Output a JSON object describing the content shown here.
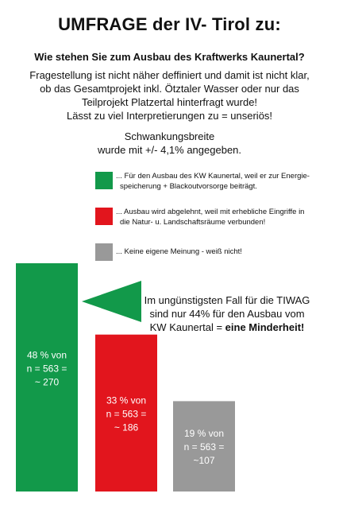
{
  "title": "UMFRAGE der IV- Tirol zu:",
  "subtitle": "Wie stehen Sie zum Ausbau des Kraftwerks Kaunertal?",
  "intro_lines": [
    "Fragestellung ist nicht näher deffiniert und damit ist nicht klar,",
    "ob das Gesamtprojekt inkl. Ötztaler Wasser oder nur das",
    "Teilprojekt Platzertal hinterfragt wurde!",
    "Lässt zu viel Interpretierungen zu = unseriös!"
  ],
  "margin_note_lines": [
    "Schwankungsbreite",
    "wurde mit +/- 4,1% angegeben."
  ],
  "legend": [
    {
      "color": "#12994a",
      "lines": [
        "... Für den Ausbau des KW Kaunertal, weil er zur Energie-",
        "speicherung + Blackoutvorsorge beiträgt."
      ]
    },
    {
      "color": "#e2151d",
      "lines": [
        "... Ausbau wird abgelehnt, weil mit erhebliche Eingriffe in",
        "die Natur- u. Landschaftsräume verbunden!"
      ]
    },
    {
      "color": "#999999",
      "lines": [
        "... Keine eigene Meinung - weiß nicht!"
      ]
    }
  ],
  "callout": {
    "line1": "Im ungünstigsten Fall für die  TIWAG",
    "line2": "sind nur 44% für den Ausbau vom",
    "line3_prefix": "KW Kaunertal = ",
    "line3_bold": "eine Minderheit!"
  },
  "chart_data": {
    "type": "bar",
    "categories": [
      "Für den Ausbau",
      "Ausbau wird abgelehnt",
      "Keine eigene Meinung"
    ],
    "values": [
      48,
      33,
      19
    ],
    "unit": "%",
    "n": 563,
    "counts": [
      270,
      186,
      107
    ],
    "colors": [
      "#12994a",
      "#e2151d",
      "#999999"
    ],
    "data_labels": [
      [
        "48 % von",
        "n = 563 =",
        "~ 270"
      ],
      [
        "33 % von",
        "n = 563 =",
        "~ 186"
      ],
      [
        "19 % von",
        "n = 563 =",
        "~107"
      ]
    ],
    "ylim": [
      0,
      48
    ],
    "grid": false
  }
}
